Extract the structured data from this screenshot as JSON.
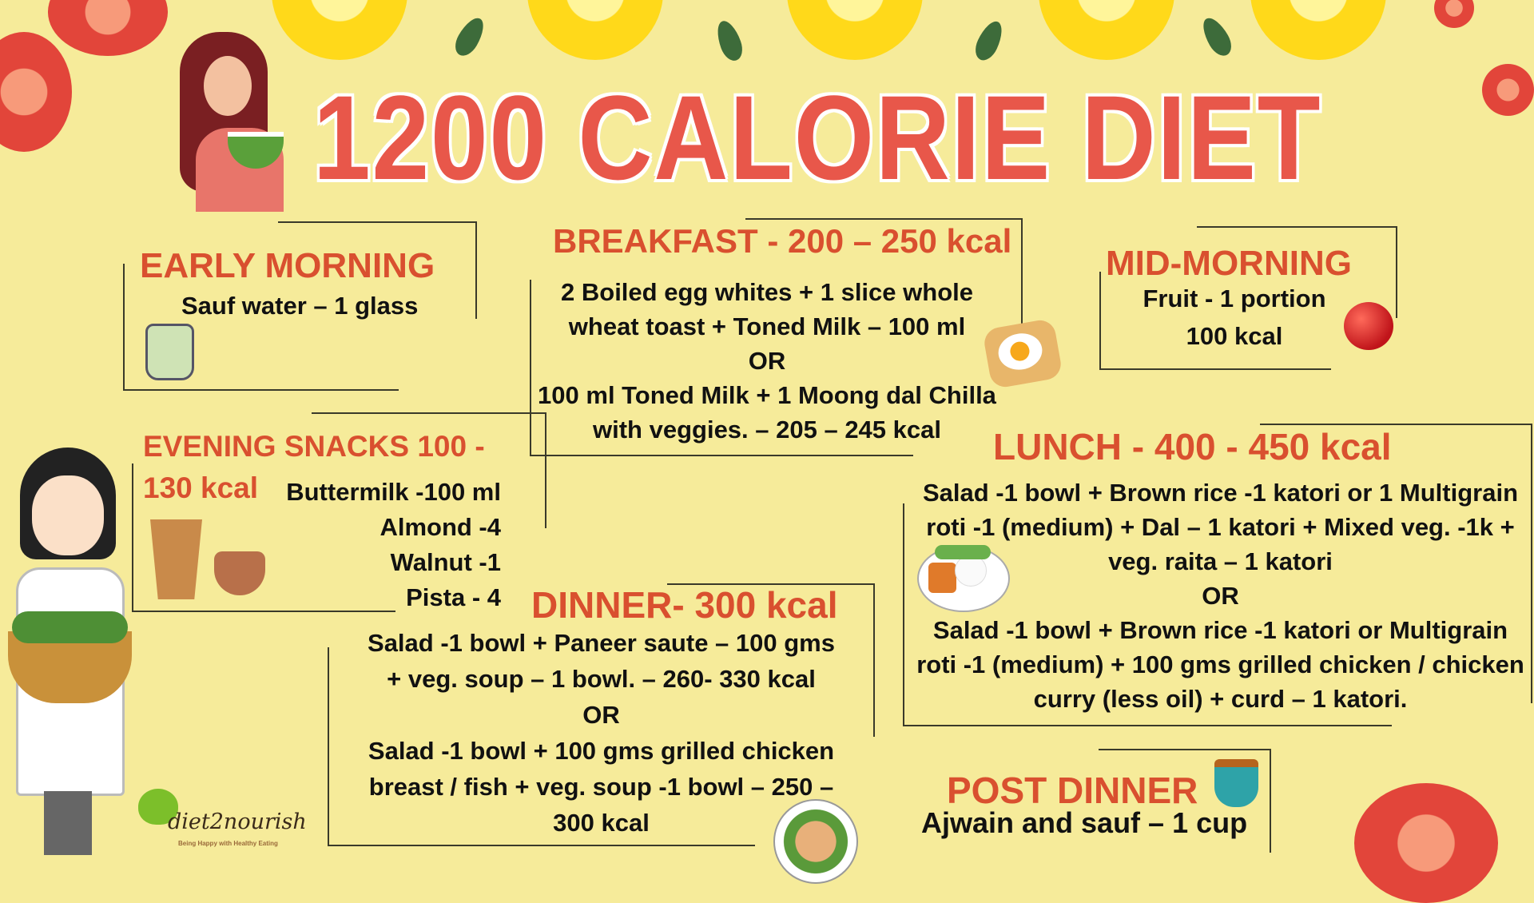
{
  "title": "1200 CALORIE DIET",
  "colors": {
    "background": "#f6eb9a",
    "title": "#e8574a",
    "heading": "#d9502f",
    "text": "#111111"
  },
  "early_morning": {
    "heading": "EARLY MORNING",
    "items": [
      "Sauf water – 1 glass"
    ],
    "icon": "jar-drink-icon"
  },
  "breakfast": {
    "heading": "BREAKFAST - 200 – 250 kcal",
    "lines": [
      "2 Boiled egg whites + 1 slice whole",
      "wheat toast + Toned Milk – 100 ml",
      "OR",
      "100 ml Toned Milk + 1 Moong dal Chilla",
      "with veggies. – 205 – 245 kcal"
    ],
    "icon": "egg-toast-icon"
  },
  "mid_morning": {
    "heading": "MID-MORNING",
    "lines": [
      "Fruit - 1 portion",
      "100 kcal"
    ],
    "icon": "apple-icon"
  },
  "evening_snacks": {
    "heading_line1": "EVENING SNACKS 100 -",
    "heading_line2": "130 kcal",
    "items": [
      "Buttermilk -100 ml",
      "Almond -4",
      "Walnut -1",
      "Pista - 4"
    ],
    "icons": [
      "buttermilk-glass-icon",
      "nuts-bowl-icon"
    ]
  },
  "lunch": {
    "heading": "LUNCH - 400 - 450 kcal",
    "lines": [
      "Salad -1 bowl + Brown rice -1 katori or 1 Multigrain",
      "roti -1 (medium) + Dal – 1 katori + Mixed veg. -1k +",
      "veg. raita – 1 katori",
      "OR",
      "Salad -1 bowl + Brown rice -1 katori or Multigrain",
      "roti -1 (medium) + 100 gms grilled chicken / chicken",
      "curry (less oil) + curd – 1 katori."
    ],
    "icon": "meal-plate-icon"
  },
  "dinner": {
    "heading": "DINNER- 300 kcal",
    "lines": [
      "Salad -1 bowl + Paneer saute – 100 gms",
      "+ veg. soup – 1 bowl.  – 260- 330 kcal",
      "OR",
      "Salad -1 bowl + 100 gms grilled chicken",
      "breast / fish + veg. soup -1 bowl – 250 –",
      "300 kcal"
    ],
    "icon": "dinner-plate-icon"
  },
  "post_dinner": {
    "heading": "POST DINNER",
    "lines": [
      "Ajwain and sauf – 1 cup"
    ],
    "icon": "tea-cup-icon"
  },
  "logo": {
    "name": "diet2nourish",
    "tagline": "Being Happy with Healthy Eating"
  }
}
